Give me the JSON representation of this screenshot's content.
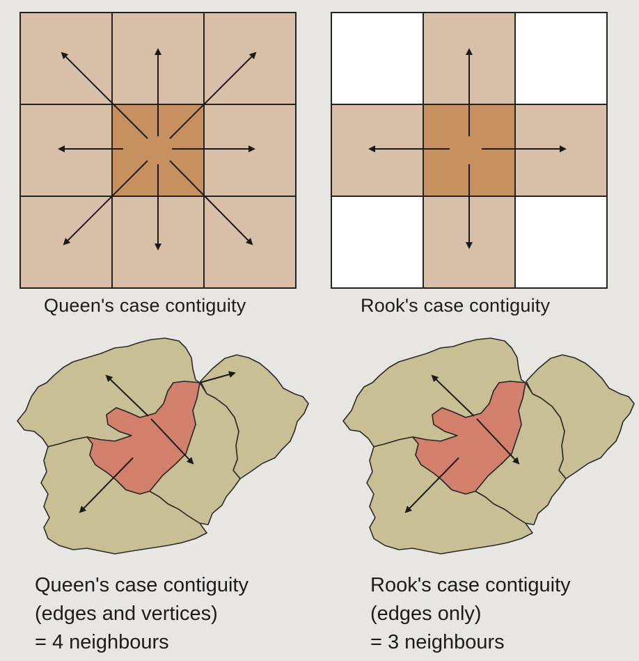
{
  "colors": {
    "background": "#e8e6e3",
    "grid_light": "#d8c0a8",
    "grid_center": "#c7915f",
    "grid_empty": "#ffffff",
    "grid_line": "#222222",
    "map_fill": "#c8bf95",
    "map_focus": "#d27f6b",
    "map_border": "#2a2a2a",
    "arrow": "#1a1a1a"
  },
  "top_left": {
    "caption": "Queen's case contiguity"
  },
  "top_right": {
    "caption": "Rook's case contiguity"
  },
  "bottom_left": {
    "line1": "Queen's case contiguity",
    "line2": "(edges and vertices)",
    "line3": "= 4 neighbours"
  },
  "bottom_right": {
    "line1": "Rook's case contiguity",
    "line2": "(edges only)",
    "line3": "= 3 neighbours"
  }
}
